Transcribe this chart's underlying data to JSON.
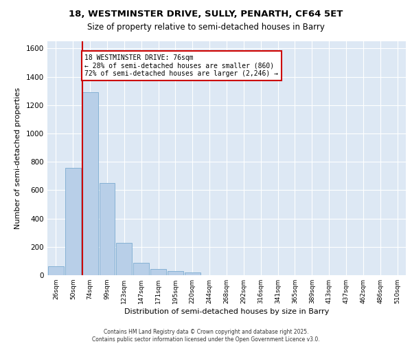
{
  "title_line1": "18, WESTMINSTER DRIVE, SULLY, PENARTH, CF64 5ET",
  "title_line2": "Size of property relative to semi-detached houses in Barry",
  "xlabel": "Distribution of semi-detached houses by size in Barry",
  "ylabel": "Number of semi-detached properties",
  "categories": [
    "26sqm",
    "50sqm",
    "74sqm",
    "99sqm",
    "123sqm",
    "147sqm",
    "171sqm",
    "195sqm",
    "220sqm",
    "244sqm",
    "268sqm",
    "292sqm",
    "316sqm",
    "341sqm",
    "365sqm",
    "389sqm",
    "413sqm",
    "437sqm",
    "462sqm",
    "486sqm",
    "510sqm"
  ],
  "values": [
    65,
    755,
    1290,
    650,
    230,
    85,
    45,
    30,
    20,
    0,
    0,
    0,
    0,
    0,
    0,
    0,
    0,
    0,
    0,
    0,
    0
  ],
  "bar_color": "#b8cfe8",
  "bar_edge_color": "#7aaad0",
  "bg_color": "#dde8f4",
  "grid_color": "#ffffff",
  "annotation_title": "18 WESTMINSTER DRIVE: 76sqm",
  "annotation_line2": "← 28% of semi-detached houses are smaller (860)",
  "annotation_line3": "72% of semi-detached houses are larger (2,246) →",
  "ann_box_color": "#cc0000",
  "ylim": [
    0,
    1650
  ],
  "yticks": [
    0,
    200,
    400,
    600,
    800,
    1000,
    1200,
    1400,
    1600
  ],
  "footer_line1": "Contains HM Land Registry data © Crown copyright and database right 2025.",
  "footer_line2": "Contains public sector information licensed under the Open Government Licence v3.0."
}
